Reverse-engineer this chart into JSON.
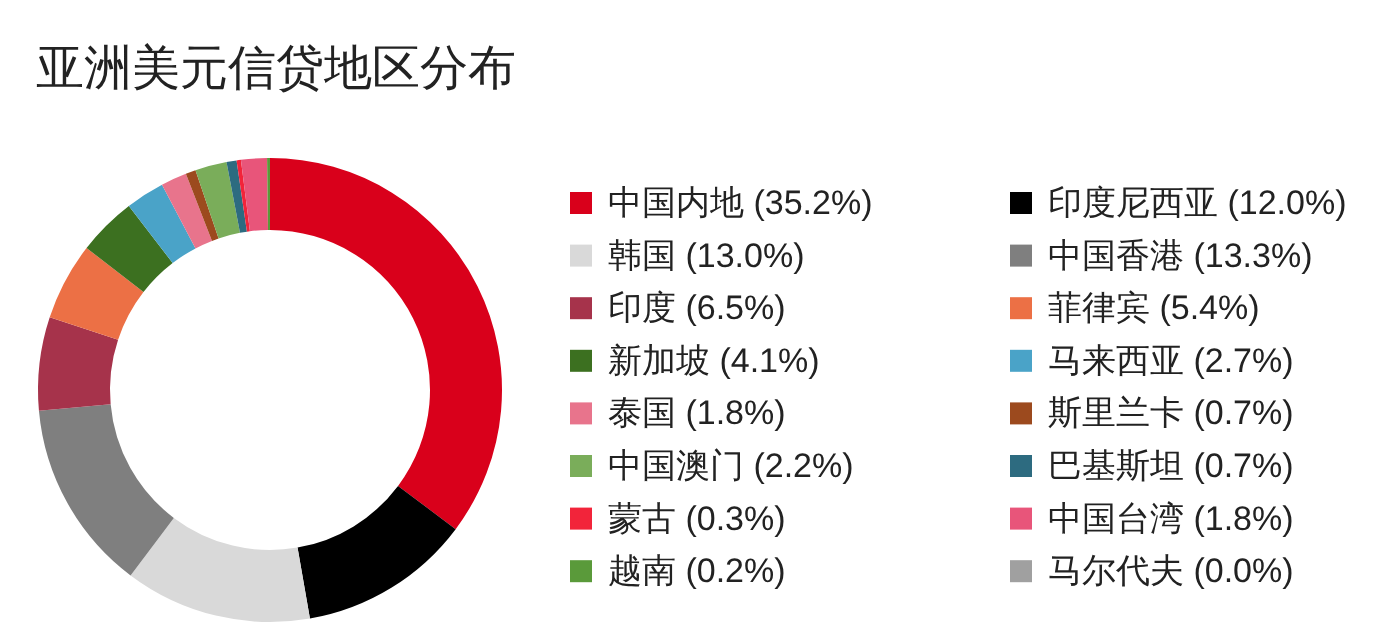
{
  "chart_data": {
    "type": "donut",
    "title": "亚洲美元信贷地区分布",
    "categories": [
      "中国内地 (35.2%)",
      "印度尼西亚 (12.0%)",
      "韩国 (13.0%)",
      "中国香港 (13.3%)",
      "印度 (6.5%)",
      "菲律宾 (5.4%)",
      "新加坡 (4.1%)",
      "马来西亚 (2.7%)",
      "泰国 (1.8%)",
      "斯里兰卡 (0.7%)",
      "中国澳门 (2.2%)",
      "巴基斯坦 (0.7%)",
      "蒙古 (0.3%)",
      "中国台湾 (1.8%)",
      "越南 (0.2%)",
      "马尔代夫 (0.0%)"
    ],
    "values": [
      35.2,
      12.0,
      13.0,
      13.3,
      6.5,
      5.4,
      4.1,
      2.7,
      1.8,
      0.7,
      2.2,
      0.7,
      0.3,
      1.8,
      0.2,
      0.0
    ],
    "colors": [
      "#d9001b",
      "#000000",
      "#d9d9d9",
      "#7f7f7f",
      "#a6334b",
      "#ec7045",
      "#3c7020",
      "#4aa3c8",
      "#e8748c",
      "#9c4a1e",
      "#7aad5a",
      "#2d6b80",
      "#f2243a",
      "#e8557a",
      "#5a9a3a",
      "#a0a0a0"
    ],
    "legend": "right"
  }
}
